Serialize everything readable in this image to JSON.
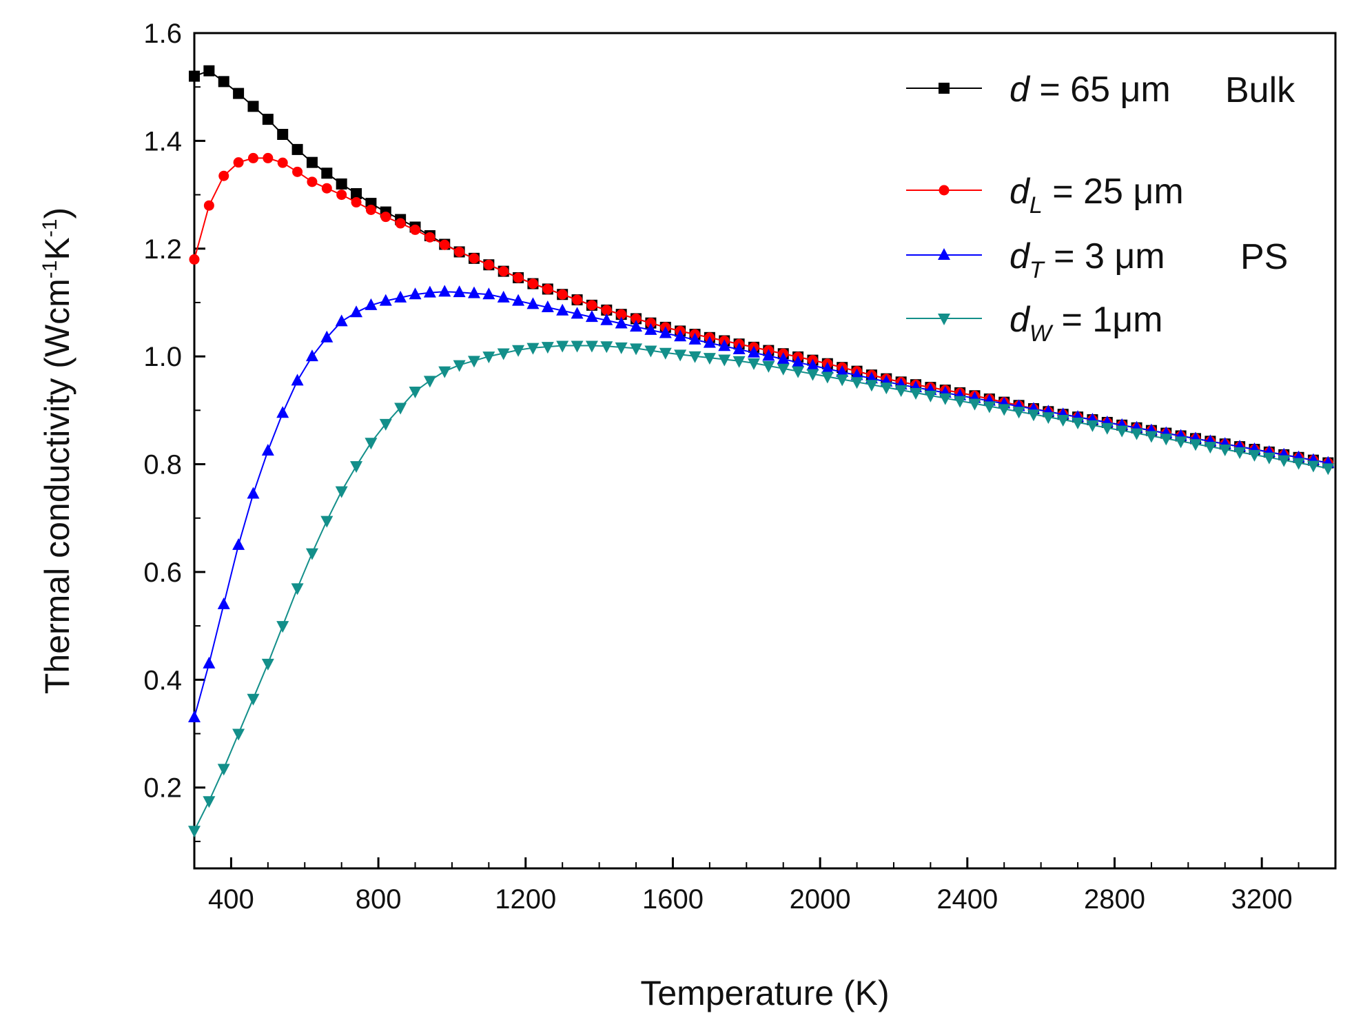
{
  "chart_data": {
    "type": "line",
    "title": "",
    "xlabel": "Temperature (K)",
    "ylabel": "Thermal conductivity (Wcm",
    "ylabel_sup1": "-1",
    "ylabel_mid": "K",
    "ylabel_sup2": "-1",
    "ylabel_end": ")",
    "xlim": [
      300,
      3400
    ],
    "ylim": [
      0.05,
      1.6
    ],
    "xticks": [
      400,
      800,
      1200,
      1600,
      2000,
      2400,
      2800,
      3200
    ],
    "xtick_labels": [
      "400",
      "800",
      "1200",
      "1600",
      "2000",
      "2400",
      "2800",
      "3200"
    ],
    "yticks": [
      0.2,
      0.4,
      0.6,
      0.8,
      1.0,
      1.2,
      1.4,
      1.6
    ],
    "ytick_labels": [
      "0.2",
      "0.4",
      "0.6",
      "0.8",
      "1.0",
      "1.2",
      "1.4",
      "1.6"
    ],
    "grid": false,
    "legend_position": "top-right",
    "legend_annotations": {
      "bulk": "Bulk",
      "ps": "PS"
    },
    "x_start": 300,
    "x_step": 40,
    "x_count": 78,
    "series": [
      {
        "name": "d = 65 μm",
        "label_var": "d",
        "label_sub": "",
        "label_rest": " = 65 μm",
        "color": "#000000",
        "marker": "square",
        "points": [
          [
            300,
            1.52
          ],
          [
            340,
            1.53
          ],
          [
            400,
            1.5
          ],
          [
            500,
            1.44
          ],
          [
            600,
            1.37
          ],
          [
            700,
            1.32
          ],
          [
            800,
            1.275
          ],
          [
            900,
            1.24
          ],
          [
            1000,
            1.2
          ],
          [
            1100,
            1.17
          ],
          [
            1200,
            1.14
          ],
          [
            1400,
            1.09
          ],
          [
            1600,
            1.05
          ],
          [
            1800,
            1.02
          ],
          [
            2000,
            0.99
          ],
          [
            2200,
            0.955
          ],
          [
            2400,
            0.93
          ],
          [
            2600,
            0.9
          ],
          [
            2800,
            0.875
          ],
          [
            3000,
            0.85
          ],
          [
            3200,
            0.825
          ],
          [
            3400,
            0.8
          ]
        ]
      },
      {
        "name": "d_L = 25 μm",
        "label_var": "d",
        "label_sub": "L",
        "label_rest": " = 25 μm",
        "color": "#ff0000",
        "marker": "circle",
        "points": [
          [
            300,
            1.18
          ],
          [
            340,
            1.28
          ],
          [
            380,
            1.335
          ],
          [
            420,
            1.36
          ],
          [
            460,
            1.368
          ],
          [
            500,
            1.368
          ],
          [
            560,
            1.355
          ],
          [
            600,
            1.33
          ],
          [
            700,
            1.3
          ],
          [
            800,
            1.265
          ],
          [
            900,
            1.235
          ],
          [
            1000,
            1.2
          ],
          [
            1100,
            1.17
          ],
          [
            1200,
            1.14
          ],
          [
            1400,
            1.09
          ],
          [
            1600,
            1.05
          ],
          [
            1800,
            1.02
          ],
          [
            2000,
            0.99
          ],
          [
            2200,
            0.955
          ],
          [
            2400,
            0.93
          ],
          [
            2600,
            0.9
          ],
          [
            2800,
            0.875
          ],
          [
            3000,
            0.85
          ],
          [
            3200,
            0.825
          ],
          [
            3400,
            0.8
          ]
        ]
      },
      {
        "name": "d_T = 3 μm",
        "label_var": "d",
        "label_sub": "T",
        "label_rest": " = 3 μm",
        "color": "#0000ff",
        "marker": "triangle-up",
        "points": [
          [
            300,
            0.33
          ],
          [
            340,
            0.43
          ],
          [
            380,
            0.54
          ],
          [
            420,
            0.65
          ],
          [
            460,
            0.745
          ],
          [
            500,
            0.825
          ],
          [
            540,
            0.895
          ],
          [
            580,
            0.955
          ],
          [
            620,
            1.0
          ],
          [
            660,
            1.035
          ],
          [
            700,
            1.065
          ],
          [
            760,
            1.09
          ],
          [
            800,
            1.1
          ],
          [
            900,
            1.115
          ],
          [
            960,
            1.12
          ],
          [
            1000,
            1.12
          ],
          [
            1100,
            1.115
          ],
          [
            1200,
            1.1
          ],
          [
            1300,
            1.085
          ],
          [
            1400,
            1.07
          ],
          [
            1600,
            1.04
          ],
          [
            1800,
            1.01
          ],
          [
            2000,
            0.98
          ],
          [
            2200,
            0.95
          ],
          [
            2400,
            0.925
          ],
          [
            2600,
            0.9
          ],
          [
            2800,
            0.875
          ],
          [
            3000,
            0.85
          ],
          [
            3200,
            0.825
          ],
          [
            3400,
            0.8
          ]
        ]
      },
      {
        "name": "d_W = 1μm",
        "label_var": "d",
        "label_sub": "W",
        "label_rest": " = 1μm",
        "color": "#138f8a",
        "marker": "triangle-down",
        "points": [
          [
            300,
            0.12
          ],
          [
            340,
            0.175
          ],
          [
            380,
            0.235
          ],
          [
            420,
            0.3
          ],
          [
            460,
            0.365
          ],
          [
            500,
            0.43
          ],
          [
            540,
            0.5
          ],
          [
            580,
            0.57
          ],
          [
            620,
            0.635
          ],
          [
            660,
            0.695
          ],
          [
            700,
            0.75
          ],
          [
            760,
            0.82
          ],
          [
            800,
            0.86
          ],
          [
            900,
            0.935
          ],
          [
            960,
            0.965
          ],
          [
            1000,
            0.98
          ],
          [
            1100,
            1.0
          ],
          [
            1200,
            1.015
          ],
          [
            1300,
            1.02
          ],
          [
            1400,
            1.02
          ],
          [
            1500,
            1.015
          ],
          [
            1600,
            1.005
          ],
          [
            1800,
            0.99
          ],
          [
            2000,
            0.965
          ],
          [
            2200,
            0.94
          ],
          [
            2400,
            0.915
          ],
          [
            2600,
            0.89
          ],
          [
            2800,
            0.865
          ],
          [
            3000,
            0.84
          ],
          [
            3200,
            0.815
          ],
          [
            3400,
            0.79
          ]
        ]
      }
    ]
  }
}
